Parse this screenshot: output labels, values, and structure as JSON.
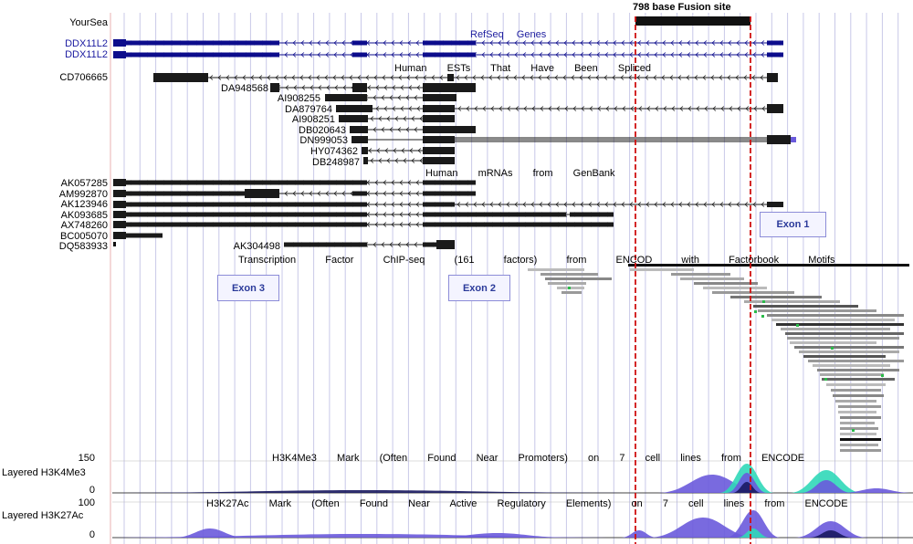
{
  "fusion_label": "798 base Fusion site",
  "refseq": {
    "track_name": "YourSea",
    "title": "RefSeq  Genes",
    "genes": [
      "DDX11L2",
      "DDX11L2"
    ]
  },
  "ests": {
    "title": "Human  ESTs  That  Have  Been  Spliced",
    "items": [
      "CD706665",
      "DA948568",
      "AI908255",
      "DA879764",
      "AI908251",
      "DB020643",
      "DN999053",
      "HY074362",
      "DB248987"
    ]
  },
  "mrnas": {
    "title": "Human  mRNAs  from  GenBank",
    "items": [
      "AK057285",
      "AM992870",
      "AK123946",
      "AK093685",
      "AX748260",
      "BC005070",
      "DQ583933",
      "AK304498"
    ]
  },
  "tf": {
    "title": "Transcription  Factor  ChIP-seq  (161  factors)  from  ENCOD  with  Factorbook  Motifs"
  },
  "exons": [
    "Exon 1",
    "Exon 2",
    "Exon 3"
  ],
  "h3k4me3": {
    "track_label": "Layered H3K4Me3",
    "title": "H3K4Me3  Mark  (Often  Found  Near  Promoters)  on  7  cell  lines  from  ENCODE",
    "max": "150",
    "min": "0"
  },
  "h3k27ac": {
    "track_label": "Layered H3K27Ac",
    "title": "H3K27Ac  Mark  (Often  Found  Near  Active  Regulatory  Elements)  on  7  cell  lines  from  ENCODE",
    "max": "100",
    "min": "0"
  },
  "colors": {
    "gene_blue": "#0c0c8c",
    "feature_black": "#1a1a1a",
    "fusion_red": "#d01010",
    "grid_line": "#c8c8e8",
    "signal_teal": "#30d8b8",
    "signal_purple": "#6a5adc",
    "signal_navy": "#1a1a60"
  }
}
